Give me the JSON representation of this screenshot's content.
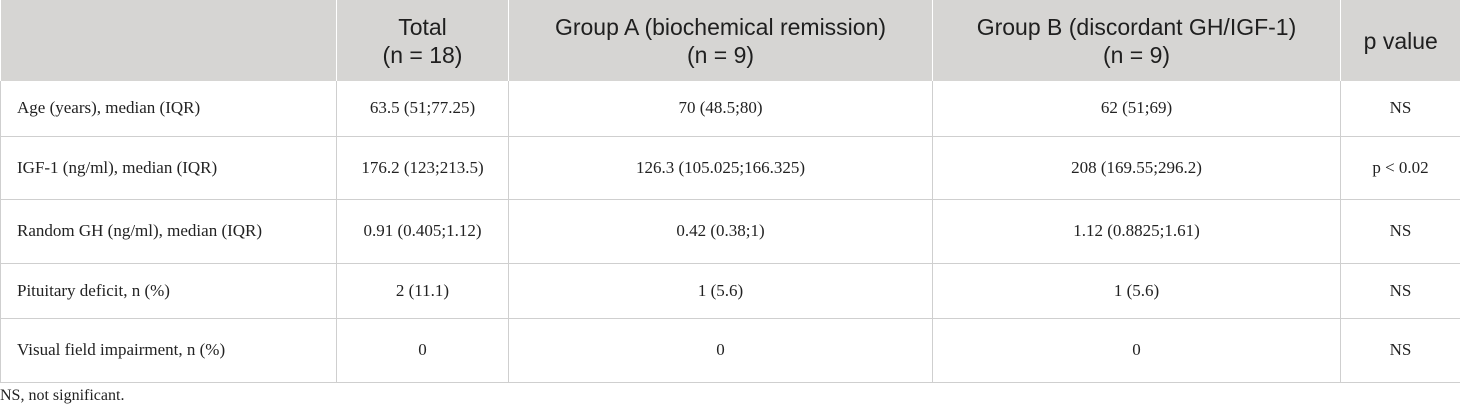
{
  "table": {
    "headers": [
      {
        "line1": "",
        "line2": ""
      },
      {
        "line1": "Total",
        "line2": "(n = 18)"
      },
      {
        "line1": "Group A (biochemical remission)",
        "line2": "(n = 9)"
      },
      {
        "line1": "Group B (discordant GH/IGF-1)",
        "line2": "(n = 9)"
      },
      {
        "line1": "p value",
        "line2": ""
      }
    ],
    "rows": [
      {
        "label": "Age (years), median (IQR)",
        "total": "63.5 (51;77.25)",
        "group_a": "70 (48.5;80)",
        "group_b": "62 (51;69)",
        "p": "NS"
      },
      {
        "label": "IGF-1 (ng/ml), median (IQR)",
        "total": "176.2 (123;213.5)",
        "group_a": "126.3 (105.025;166.325)",
        "group_b": "208 (169.55;296.2)",
        "p": "p < 0.02"
      },
      {
        "label": "Random GH (ng/ml), median (IQR)",
        "total": "0.91 (0.405;1.12)",
        "group_a": "0.42 (0.38;1)",
        "group_b": "1.12 (0.8825;1.61)",
        "p": "NS"
      },
      {
        "label": "Pituitary deficit, n (%)",
        "total": "2 (11.1)",
        "group_a": "1 (5.6)",
        "group_b": "1 (5.6)",
        "p": "NS"
      },
      {
        "label": "Visual field impairment, n (%)",
        "total": "0",
        "group_a": "0",
        "group_b": "0",
        "p": "NS"
      }
    ]
  },
  "footnote": "NS, not significant."
}
